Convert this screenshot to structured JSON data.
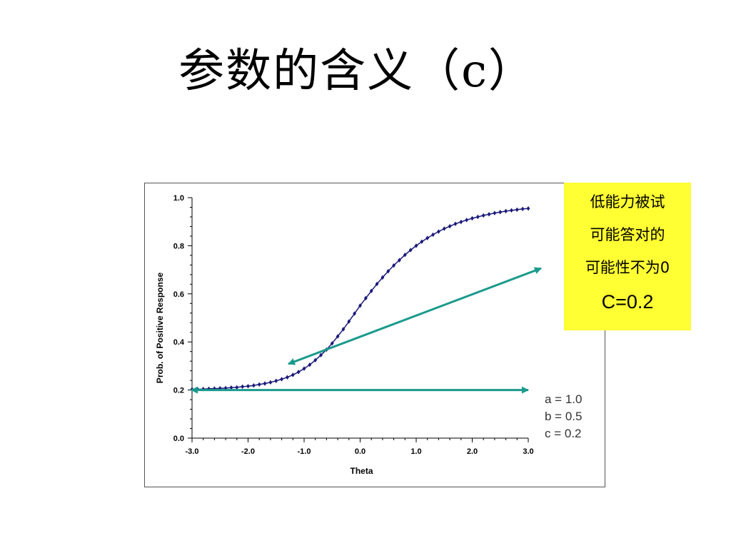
{
  "title": "参数的含义（c）",
  "callout": {
    "lines": [
      "低能力被试",
      "可能答对的",
      "可能性不为0"
    ],
    "value": "C=0.2"
  },
  "params": {
    "lines": [
      "a = 1.0",
      "b = 0.5",
      "c = 0.2"
    ]
  },
  "colors": {
    "curve": "#1a1a7a",
    "arrow": "#1a9a8c",
    "callout_bg": "#ffff33"
  },
  "chart_data": {
    "type": "line",
    "xlabel": "Theta",
    "ylabel": "Prob. of Positive Response",
    "xlim": [
      -3.0,
      3.0
    ],
    "ylim": [
      0.0,
      1.0
    ],
    "x_ticks": [
      "-3.0",
      "-2.0",
      "-1.0",
      "0.0",
      "1.0",
      "2.0",
      "3.0"
    ],
    "y_ticks": [
      "0.0",
      "0.2",
      "0.4",
      "0.6",
      "0.8",
      "1.0"
    ],
    "grid": false,
    "series": [
      {
        "x": [
          -3.0,
          -2.9,
          -2.8,
          -2.7,
          -2.6,
          -2.5,
          -2.4,
          -2.3,
          -2.2,
          -2.1,
          -2.0,
          -1.9,
          -1.8,
          -1.7,
          -1.6,
          -1.5,
          -1.4,
          -1.3,
          -1.2,
          -1.1,
          -1.0,
          -0.9,
          -0.8,
          -0.7,
          -0.6,
          -0.5,
          -0.4,
          -0.3,
          -0.2,
          -0.1,
          0.0,
          0.1,
          0.2,
          0.3,
          0.4,
          0.5,
          0.6,
          0.7,
          0.8,
          0.9,
          1.0,
          1.1,
          1.2,
          1.3,
          1.4,
          1.5,
          1.6,
          1.7,
          1.8,
          1.9,
          2.0,
          2.1,
          2.2,
          2.3,
          2.4,
          2.5,
          2.6,
          2.7,
          2.8,
          2.9,
          3.0
        ],
        "y": [
          0.203,
          0.203,
          0.204,
          0.205,
          0.206,
          0.207,
          0.208,
          0.21,
          0.211,
          0.214,
          0.216,
          0.219,
          0.223,
          0.227,
          0.232,
          0.238,
          0.245,
          0.253,
          0.263,
          0.275,
          0.289,
          0.305,
          0.324,
          0.345,
          0.368,
          0.394,
          0.423,
          0.453,
          0.485,
          0.518,
          0.551,
          0.582,
          0.612,
          0.641,
          0.668,
          0.694,
          0.718,
          0.74,
          0.762,
          0.782,
          0.8,
          0.817,
          0.832,
          0.846,
          0.859,
          0.871,
          0.881,
          0.891,
          0.899,
          0.907,
          0.914,
          0.92,
          0.926,
          0.931,
          0.936,
          0.94,
          0.944,
          0.947,
          0.95,
          0.953,
          0.955
        ]
      }
    ]
  }
}
